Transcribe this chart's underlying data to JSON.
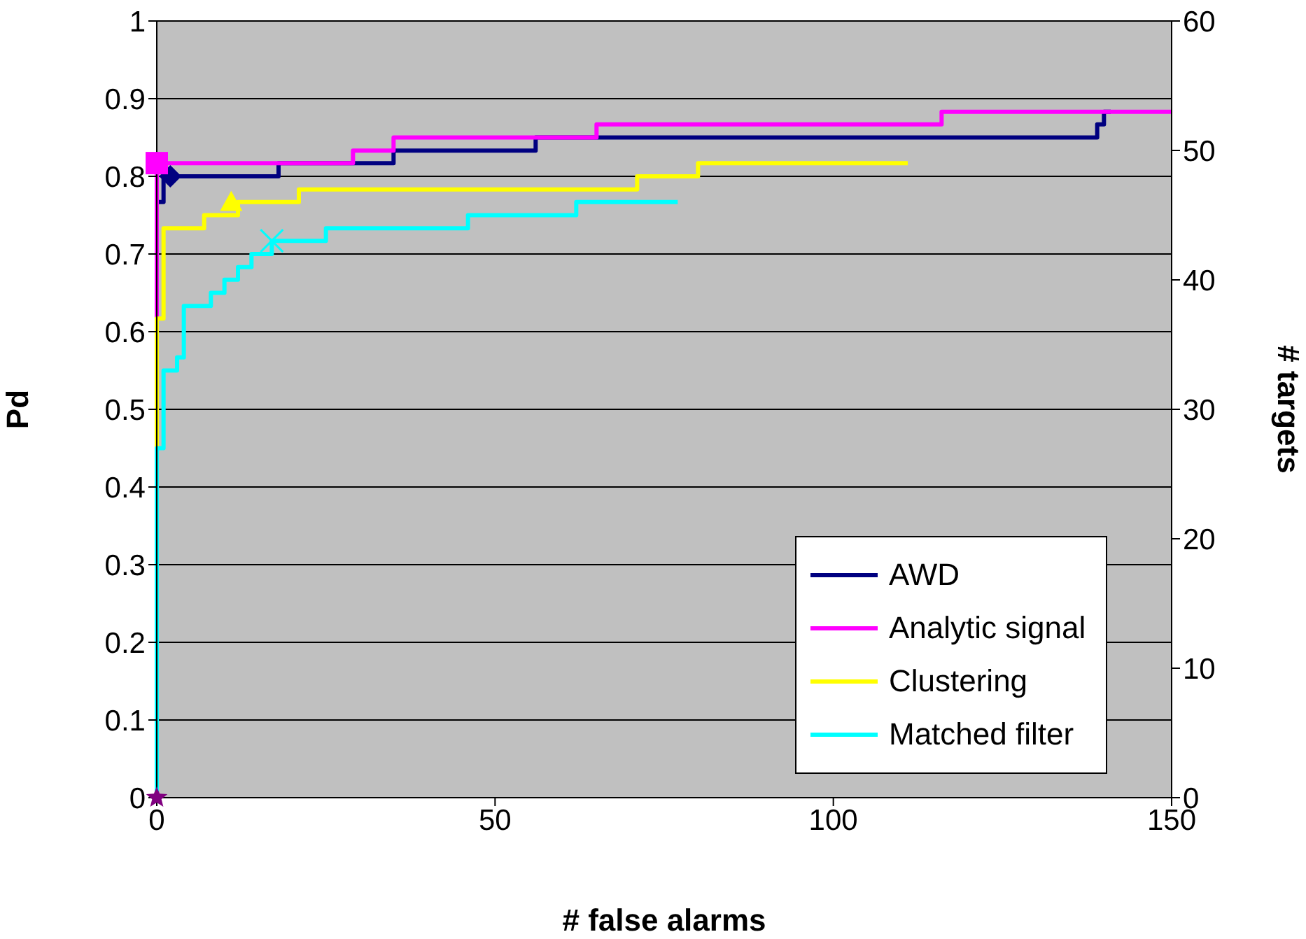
{
  "chart_data": {
    "type": "step",
    "xlabel": "# false alarms",
    "ylabel": "Pd",
    "y2label": "# targets",
    "xlim": [
      0,
      150
    ],
    "xticks": [
      0,
      50,
      100,
      150
    ],
    "ylim": [
      0,
      1
    ],
    "yticks": [
      0,
      {
        "value": 0.1,
        "label": "0.1"
      },
      {
        "value": 0.2,
        "label": "0.2"
      },
      {
        "value": 0.3,
        "label": "0.3"
      },
      {
        "value": 0.4,
        "label": "0.4"
      },
      {
        "value": 0.5,
        "label": "0.5"
      },
      {
        "value": 0.6,
        "label": "0.6"
      },
      {
        "value": 0.7,
        "label": "0.7"
      },
      {
        "value": 0.8,
        "label": "0.8"
      },
      {
        "value": 0.9,
        "label": "0.9"
      },
      1
    ],
    "y2lim": [
      0,
      60
    ],
    "y2ticks": [
      0,
      10,
      20,
      30,
      40,
      50,
      60
    ],
    "grid": "y",
    "legend": "bottom right",
    "series": [
      {
        "name": "AWD",
        "color": "#000080",
        "x": [
          0,
          0,
          1,
          18,
          35,
          56,
          139,
          140,
          141
        ],
        "values": [
          0,
          0.767,
          0.8,
          0.817,
          0.833,
          0.85,
          0.867,
          0.883,
          0.883
        ]
      },
      {
        "name": "Analytic signal",
        "color": "#ff00ff",
        "x": [
          0,
          0,
          29,
          35,
          65,
          116,
          150
        ],
        "values": [
          0,
          0.817,
          0.833,
          0.85,
          0.867,
          0.883,
          0.883
        ]
      },
      {
        "name": "Clustering",
        "color": "#ffff00",
        "x": [
          0,
          0,
          1,
          7,
          12,
          21,
          71,
          80,
          111
        ],
        "values": [
          0,
          0.617,
          0.733,
          0.75,
          0.767,
          0.783,
          0.8,
          0.817,
          0.817
        ]
      },
      {
        "name": "Matched filter",
        "color": "#00ffff",
        "x": [
          0,
          0,
          1,
          3,
          4,
          8,
          10,
          12,
          14,
          17,
          25,
          46,
          62,
          77
        ],
        "values": [
          0,
          0.45,
          0.55,
          0.567,
          0.633,
          0.65,
          0.667,
          0.683,
          0.7,
          0.717,
          0.733,
          0.75,
          0.767,
          0.767
        ]
      },
      {
        "type": "scatter",
        "marker": "diamond",
        "color": "#000080",
        "x": [
          2
        ],
        "values": [
          0.8
        ]
      },
      {
        "type": "scatter",
        "marker": "square",
        "color": "#ff00ff",
        "x": [
          0
        ],
        "values": [
          0.817
        ]
      },
      {
        "type": "scatter",
        "marker": "triangle",
        "color": "#ffff00",
        "x": [
          11
        ],
        "values": [
          0.767
        ]
      },
      {
        "type": "scatter",
        "marker": "cross",
        "color": "#00ffff",
        "x": [
          17
        ],
        "values": [
          0.717
        ]
      },
      {
        "type": "scatter",
        "marker": "star",
        "color": "#800080",
        "x": [
          0
        ],
        "values": [
          0
        ]
      }
    ]
  }
}
